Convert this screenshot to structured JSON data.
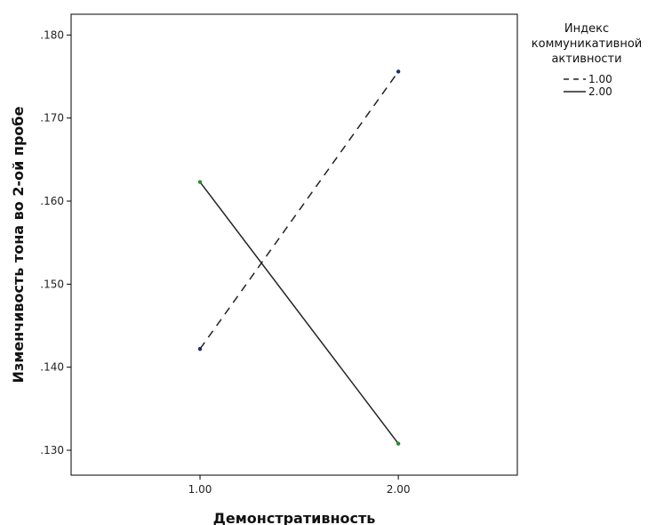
{
  "chart_data": {
    "type": "line",
    "x": [
      1.0,
      2.0
    ],
    "x_tick_labels": [
      "1.00",
      "2.00"
    ],
    "xlim": [
      0.35,
      2.6
    ],
    "ylim": [
      0.127,
      0.1825
    ],
    "y_ticks": [
      0.13,
      0.14,
      0.15,
      0.16,
      0.17,
      0.18
    ],
    "y_tick_labels": [
      ".130",
      ".140",
      ".150",
      ".160",
      ".170",
      ".180"
    ],
    "xlabel": "Демонстративность",
    "ylabel": "Изменчивость тона во 2-ой пробе",
    "legend": {
      "title_lines": [
        "Индекс",
        "коммуникативной",
        "активности"
      ],
      "position": "top-right",
      "entries": [
        "1.00",
        "2.00"
      ]
    },
    "grid": false,
    "series": [
      {
        "name": "1.00",
        "values": [
          0.1422,
          0.1756
        ],
        "line_style": "dashed",
        "color": "#222222",
        "marker_color": "#1f2a6b"
      },
      {
        "name": "2.00",
        "values": [
          0.1623,
          0.1308
        ],
        "line_style": "solid",
        "color": "#222222",
        "marker_color": "#2a8a2a"
      }
    ]
  }
}
